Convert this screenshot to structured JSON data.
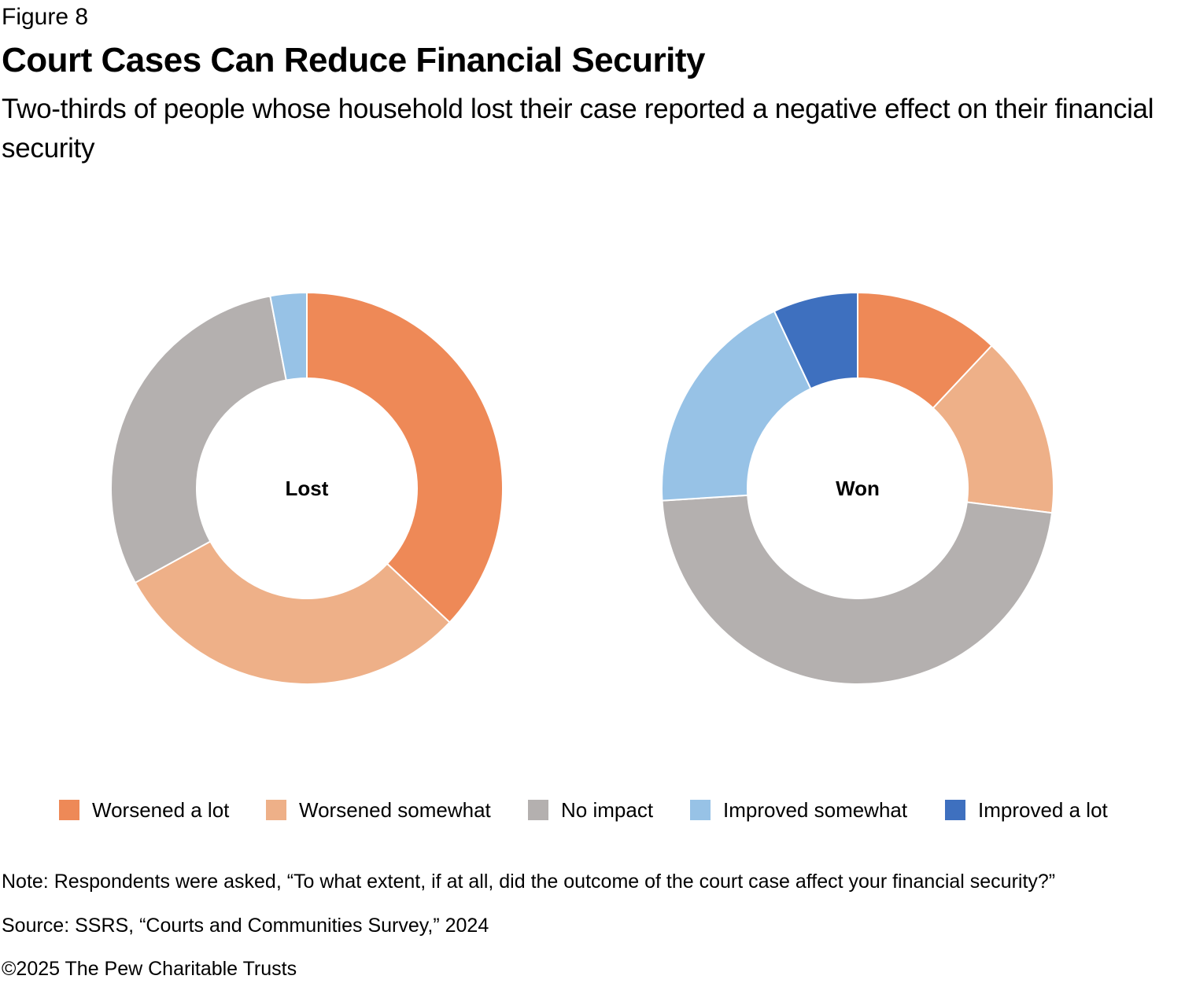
{
  "figure_label": "Figure 8",
  "title": "Court Cases Can Reduce Financial Security",
  "subtitle": "Two-thirds of people whose household lost their case reported a negative effect on their financial security",
  "chart_data": [
    {
      "type": "pie",
      "label": "Lost",
      "categories": [
        "Worsened a lot",
        "Worsened somewhat",
        "No impact",
        "Improved somewhat",
        "Improved a lot"
      ],
      "values": [
        37,
        30,
        30,
        3,
        0
      ],
      "unit": "%"
    },
    {
      "type": "pie",
      "label": "Won",
      "categories": [
        "Worsened a lot",
        "Worsened somewhat",
        "No impact",
        "Improved somewhat",
        "Improved a lot"
      ],
      "values": [
        12,
        15,
        47,
        19,
        7
      ],
      "unit": "%"
    }
  ],
  "legend": {
    "items": [
      {
        "label": "Worsened a lot",
        "color": "#EE8957"
      },
      {
        "label": "Worsened somewhat",
        "color": "#EEB088"
      },
      {
        "label": "No impact",
        "color": "#B4B0AF"
      },
      {
        "label": "Improved somewhat",
        "color": "#97C2E6"
      },
      {
        "label": "Improved a lot",
        "color": "#3E70BF"
      }
    ],
    "placement": "bottom"
  },
  "note": "Note: Respondents were asked, “To what extent, if at all, did the outcome of the court case affect your financial security?”",
  "source": "Source: SSRS, “Courts and Communities Survey,” 2024",
  "copyright": "©2025 The Pew Charitable Trusts"
}
